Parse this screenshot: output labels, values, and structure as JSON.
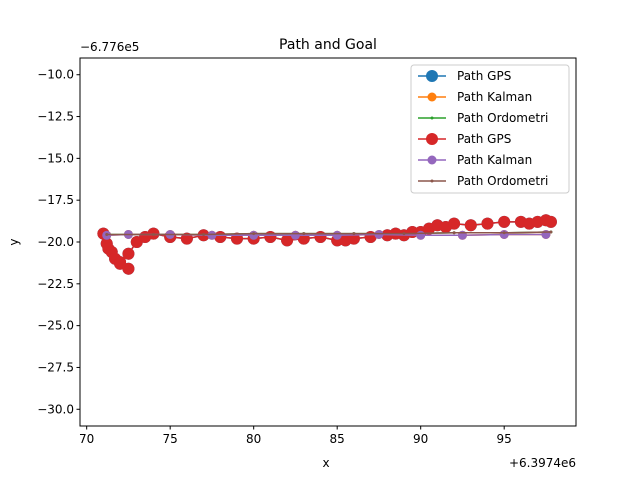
{
  "chart_data": {
    "type": "line",
    "title": "Path and Goal",
    "xlabel": "x",
    "ylabel": "y",
    "x_offset_label": "+6.3974e6",
    "y_offset_label": "−6.776e5",
    "xlim": [
      69.6,
      99.3
    ],
    "ylim": [
      -31.0,
      -9.0
    ],
    "x_ticks": [
      70,
      75,
      80,
      85,
      90,
      95
    ],
    "x_tick_labels": [
      "70",
      "75",
      "80",
      "85",
      "90",
      "95"
    ],
    "y_ticks": [
      -10.0,
      -12.5,
      -15.0,
      -17.5,
      -20.0,
      -22.5,
      -25.0,
      -27.5,
      -30.0
    ],
    "y_tick_labels": [
      "−10.0",
      "−12.5",
      "−15.0",
      "−17.5",
      "−20.0",
      "−22.5",
      "−25.0",
      "−27.5",
      "−30.0"
    ],
    "grid": false,
    "legend_position": "top-right",
    "series": [
      {
        "name": "Path GPS",
        "color": "#1f77b4",
        "marker_size": 12,
        "line_width": 1.5,
        "x": [
          71.0,
          71.2,
          71.3,
          71.5,
          71.7,
          72.0,
          72.5,
          72.0,
          72.5,
          73.0,
          73.5,
          74.0,
          75.0,
          76.0,
          77.0,
          78.0,
          79.0,
          80.0,
          81.0,
          82.0,
          83.0,
          84.0,
          85.0,
          85.5,
          86.0,
          87.0,
          88.0,
          88.5,
          89.0,
          89.5,
          90.0,
          90.5,
          91.0,
          91.5,
          92.0,
          93.0,
          94.0,
          95.0,
          96.0,
          96.5,
          97.0,
          97.5,
          97.8
        ],
        "y": [
          -19.5,
          -20.1,
          -20.4,
          -20.6,
          -21.0,
          -21.2,
          -21.6,
          -21.3,
          -20.7,
          -20.0,
          -19.7,
          -19.5,
          -19.7,
          -19.8,
          -19.6,
          -19.7,
          -19.8,
          -19.8,
          -19.7,
          -19.9,
          -19.8,
          -19.7,
          -19.9,
          -19.9,
          -19.8,
          -19.7,
          -19.6,
          -19.5,
          -19.6,
          -19.4,
          -19.4,
          -19.2,
          -19.0,
          -19.1,
          -18.9,
          -19.0,
          -18.9,
          -18.8,
          -18.8,
          -18.9,
          -18.8,
          -18.7,
          -18.8
        ]
      },
      {
        "name": "Path Kalman",
        "color": "#ff7f0e",
        "marker_size": 9,
        "line_width": 1.5,
        "x": [
          71.2,
          72.5,
          75.0,
          77.5,
          80.0,
          82.5,
          85.0,
          87.5,
          90.0,
          92.5,
          95.0,
          97.5
        ],
        "y": [
          -19.6,
          -19.55,
          -19.55,
          -19.6,
          -19.6,
          -19.6,
          -19.6,
          -19.55,
          -19.6,
          -19.6,
          -19.55,
          -19.55
        ]
      },
      {
        "name": "Path Ordometri",
        "color": "#2ca02c",
        "marker_size": 3,
        "line_width": 1.5,
        "x": [
          71.2,
          74.0,
          77.0,
          80.0,
          83.0,
          86.0,
          89.0,
          92.0,
          95.0,
          97.8
        ],
        "y": [
          -19.55,
          -19.55,
          -19.55,
          -19.5,
          -19.5,
          -19.5,
          -19.5,
          -19.45,
          -19.45,
          -19.4
        ]
      },
      {
        "name": "Path GPS",
        "color": "#d62728",
        "marker_size": 12,
        "line_width": 1.5,
        "x": [
          71.0,
          71.2,
          71.3,
          71.5,
          71.7,
          72.0,
          72.5,
          72.0,
          72.5,
          73.0,
          73.5,
          74.0,
          75.0,
          76.0,
          77.0,
          78.0,
          79.0,
          80.0,
          81.0,
          82.0,
          83.0,
          84.0,
          85.0,
          85.5,
          86.0,
          87.0,
          88.0,
          88.5,
          89.0,
          89.5,
          90.0,
          90.5,
          91.0,
          91.5,
          92.0,
          93.0,
          94.0,
          95.0,
          96.0,
          96.5,
          97.0,
          97.5,
          97.8
        ],
        "y": [
          -19.5,
          -20.1,
          -20.4,
          -20.6,
          -21.0,
          -21.2,
          -21.6,
          -21.3,
          -20.7,
          -20.0,
          -19.7,
          -19.5,
          -19.7,
          -19.8,
          -19.6,
          -19.7,
          -19.8,
          -19.8,
          -19.7,
          -19.9,
          -19.8,
          -19.7,
          -19.9,
          -19.9,
          -19.8,
          -19.7,
          -19.6,
          -19.5,
          -19.6,
          -19.4,
          -19.4,
          -19.2,
          -19.0,
          -19.1,
          -18.9,
          -19.0,
          -18.9,
          -18.8,
          -18.8,
          -18.9,
          -18.8,
          -18.7,
          -18.8
        ]
      },
      {
        "name": "Path Kalman",
        "color": "#9467bd",
        "marker_size": 9,
        "line_width": 1.5,
        "x": [
          71.2,
          72.5,
          75.0,
          77.5,
          80.0,
          82.5,
          85.0,
          87.5,
          90.0,
          92.5,
          95.0,
          97.5
        ],
        "y": [
          -19.6,
          -19.55,
          -19.55,
          -19.6,
          -19.6,
          -19.6,
          -19.6,
          -19.55,
          -19.6,
          -19.6,
          -19.55,
          -19.55
        ]
      },
      {
        "name": "Path Ordometri",
        "color": "#8c564b",
        "marker_size": 3,
        "line_width": 1.5,
        "x": [
          71.2,
          74.0,
          77.0,
          80.0,
          83.0,
          86.0,
          89.0,
          92.0,
          95.0,
          97.8
        ],
        "y": [
          -19.55,
          -19.55,
          -19.55,
          -19.5,
          -19.5,
          -19.5,
          -19.5,
          -19.45,
          -19.45,
          -19.4
        ]
      }
    ]
  }
}
